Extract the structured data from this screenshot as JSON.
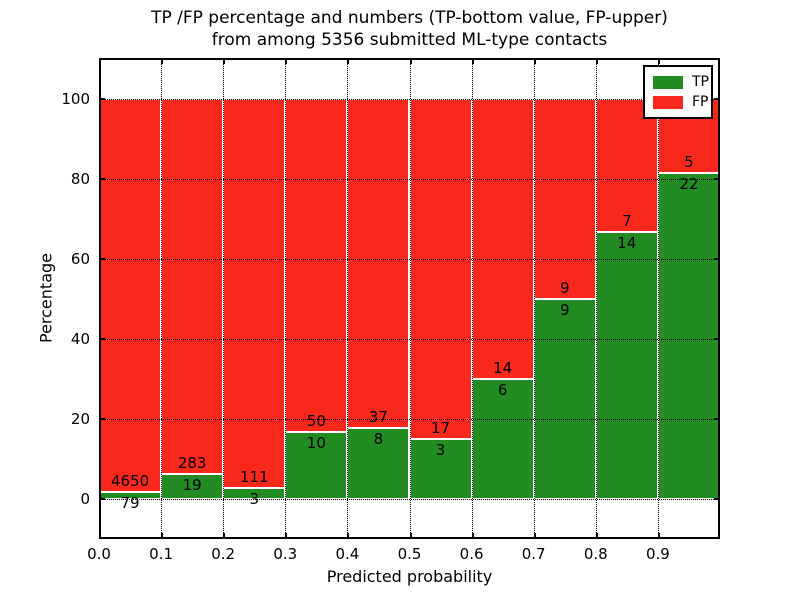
{
  "figure": {
    "title_line1": "TP /FP percentage and numbers (TP-bottom value, FP-upper)",
    "title_line2": "from among 5356 submitted ML-type contacts"
  },
  "axes": {
    "xlabel": "Predicted probability",
    "ylabel": "Percentage",
    "yticks": [
      0,
      20,
      40,
      60,
      80,
      100
    ],
    "xticks": [
      "0.0",
      "0.1",
      "0.2",
      "0.3",
      "0.4",
      "0.5",
      "0.6",
      "0.7",
      "0.8",
      "0.9"
    ]
  },
  "legend": {
    "items": [
      {
        "label": "TP",
        "color": "#228b22"
      },
      {
        "label": "FP",
        "color": "#f8281c"
      }
    ]
  },
  "colors": {
    "tp": "#228b22",
    "fp": "#f8281c",
    "grid": "#000000"
  },
  "chart_data": {
    "type": "bar",
    "stacked": true,
    "normalized": "each bar scaled to 100 percent",
    "title": "TP /FP percentage and numbers (TP-bottom value, FP-upper) from among 5356 submitted ML-type contacts",
    "xlabel": "Predicted probability",
    "ylabel": "Percentage",
    "xlim": [
      0.0,
      1.0
    ],
    "ylim": [
      -10,
      110
    ],
    "grid": true,
    "legend_position": "upper right",
    "total_contacts": 5356,
    "bins": [
      "0.0-0.1",
      "0.1-0.2",
      "0.2-0.3",
      "0.3-0.4",
      "0.4-0.5",
      "0.5-0.6",
      "0.6-0.7",
      "0.7-0.8",
      "0.8-0.9",
      "0.9-1.0"
    ],
    "series": [
      {
        "name": "TP",
        "color": "#228b22",
        "counts": [
          79,
          19,
          3,
          10,
          8,
          3,
          6,
          9,
          14,
          22
        ],
        "percent": [
          1.67,
          6.29,
          2.63,
          16.67,
          17.78,
          15.0,
          30.0,
          50.0,
          66.67,
          81.48
        ]
      },
      {
        "name": "FP",
        "color": "#f8281c",
        "counts": [
          4650,
          283,
          111,
          50,
          37,
          17,
          14,
          9,
          7,
          5
        ],
        "percent": [
          98.33,
          93.71,
          97.37,
          83.33,
          82.22,
          85.0,
          70.0,
          50.0,
          33.33,
          18.52
        ]
      }
    ]
  }
}
